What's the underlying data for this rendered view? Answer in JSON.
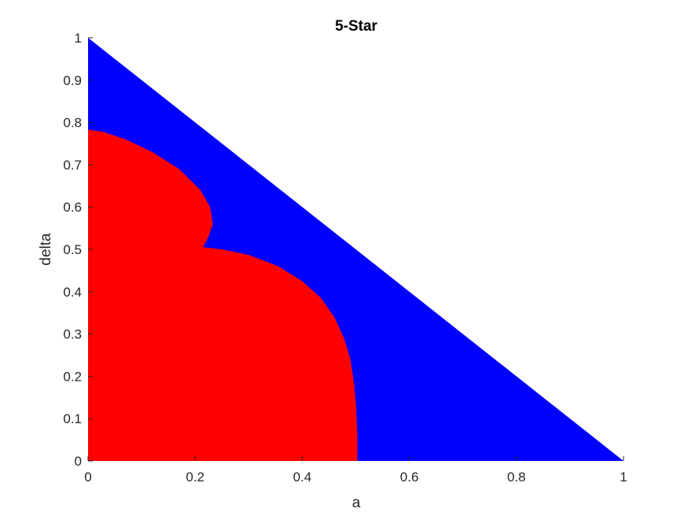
{
  "chart_data": {
    "type": "area",
    "title": "5-Star",
    "xlabel": "a",
    "ylabel": "delta",
    "xlim": [
      0,
      1
    ],
    "ylim": [
      0,
      1
    ],
    "xticks": [
      "0",
      "0.2",
      "0.4",
      "0.6",
      "0.8",
      "1"
    ],
    "yticks": [
      "0",
      "0.1",
      "0.2",
      "0.3",
      "0.4",
      "0.5",
      "0.6",
      "0.7",
      "0.8",
      "0.9",
      "1"
    ],
    "grid": false,
    "series": [
      {
        "color": "#0000ff",
        "points": [
          [
            0,
            0
          ],
          [
            1,
            0
          ],
          [
            0,
            1
          ]
        ]
      },
      {
        "color": "#ff0000",
        "points": [
          [
            0,
            0
          ],
          [
            0.503,
            0
          ],
          [
            0.503,
            0.06
          ],
          [
            0.501,
            0.12
          ],
          [
            0.497,
            0.18
          ],
          [
            0.49,
            0.24
          ],
          [
            0.478,
            0.29
          ],
          [
            0.46,
            0.34
          ],
          [
            0.435,
            0.385
          ],
          [
            0.4,
            0.425
          ],
          [
            0.355,
            0.46
          ],
          [
            0.3,
            0.487
          ],
          [
            0.25,
            0.5
          ],
          [
            0.215,
            0.505
          ],
          [
            0.225,
            0.53
          ],
          [
            0.233,
            0.56
          ],
          [
            0.228,
            0.6
          ],
          [
            0.21,
            0.64
          ],
          [
            0.17,
            0.69
          ],
          [
            0.12,
            0.73
          ],
          [
            0.07,
            0.76
          ],
          [
            0.03,
            0.777
          ],
          [
            0,
            0.783
          ]
        ]
      }
    ]
  }
}
